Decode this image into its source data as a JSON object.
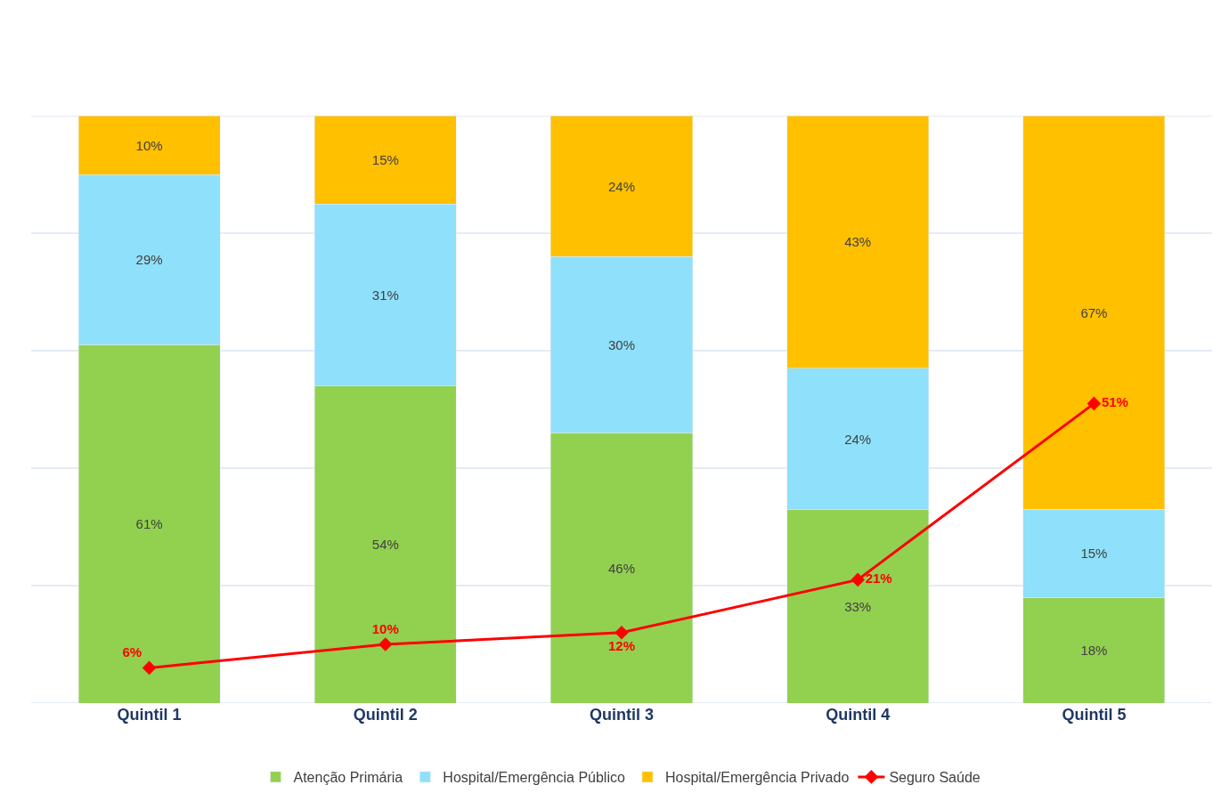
{
  "chart_data": {
    "type": "bar",
    "stacked": true,
    "categories": [
      "Quintil 1",
      "Quintil 2",
      "Quintil 3",
      "Quintil 4",
      "Quintil 5"
    ],
    "series": [
      {
        "name": "Atenção Primária",
        "color": "#92d050",
        "values": [
          61,
          54,
          46,
          33,
          18
        ],
        "value_labels": [
          "61%",
          "54%",
          "46%",
          "33%",
          "18%"
        ]
      },
      {
        "name": "Hospital/Emergência Público",
        "color": "#8fe0fa",
        "values": [
          29,
          31,
          30,
          24,
          15
        ],
        "value_labels": [
          "29%",
          "31%",
          "30%",
          "24%",
          "15%"
        ]
      },
      {
        "name": "Hospital/Emergência Privado",
        "color": "#ffc000",
        "values": [
          10,
          15,
          24,
          43,
          67
        ],
        "value_labels": [
          "10%",
          "15%",
          "24%",
          "43%",
          "67%"
        ]
      },
      {
        "name": "Seguro Saúde",
        "type": "line",
        "color": "#ff0000",
        "marker": "diamond",
        "values": [
          6,
          10,
          12,
          21,
          51
        ],
        "value_labels": [
          "6%",
          "10%",
          "12%",
          "21%",
          "51%"
        ]
      }
    ],
    "ylim": [
      0,
      100
    ],
    "yticks": [
      {
        "value": 0,
        "label": null
      },
      {
        "value": 20,
        "label": null
      },
      {
        "value": 40,
        "label": null
      },
      {
        "value": 60,
        "label": null
      },
      {
        "value": 80,
        "label": null
      },
      {
        "value": 100,
        "label": null
      }
    ],
    "grid": "y",
    "tick_labels": "x",
    "legend": "bottom"
  }
}
